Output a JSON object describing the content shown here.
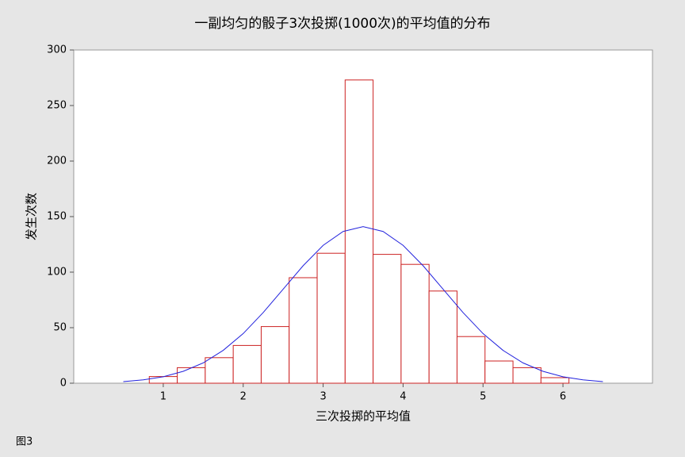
{
  "chart_data": {
    "type": "histogram",
    "title": "一副均匀的骰子3次投掷(1000次)的平均值的分布",
    "x_label": "三次投掷的平均值",
    "y_label": "发生次数",
    "caption": "图3",
    "bins": [
      0.825,
      1.175,
      1.525,
      1.875,
      2.225,
      2.575,
      2.925,
      3.275,
      3.625,
      3.975,
      4.325,
      4.675,
      5.025,
      5.375,
      5.725,
      6.075
    ],
    "values": [
      6,
      14,
      23,
      34,
      51,
      95,
      117,
      273,
      116,
      107,
      83,
      42,
      20,
      14,
      5
    ],
    "color": "#cc2222",
    "fit": {
      "color": "#2222dd",
      "x": [
        0.5,
        0.75,
        1,
        1.25,
        1.5,
        1.75,
        2,
        2.25,
        2.5,
        2.75,
        3,
        3.25,
        3.5,
        3.75,
        4,
        4.25,
        4.5,
        4.75,
        5,
        5.25,
        5.5,
        5.75,
        6,
        6.25,
        6.5
      ],
      "values": [
        1.4,
        3.0,
        5.8,
        10.7,
        18.3,
        29.6,
        44.7,
        63.6,
        84.7,
        105.8,
        124.1,
        136.6,
        141,
        136.6,
        124.1,
        105.8,
        84.7,
        63.6,
        44.7,
        29.6,
        18.3,
        10.7,
        5.8,
        3.0,
        1.4
      ]
    },
    "xlim": [
      -0.12,
      7.12
    ],
    "xticks": [
      1,
      2,
      3,
      4,
      5,
      6
    ],
    "ylim": [
      0,
      300
    ],
    "yticks": [
      0,
      50,
      100,
      150,
      200,
      250,
      300
    ]
  }
}
